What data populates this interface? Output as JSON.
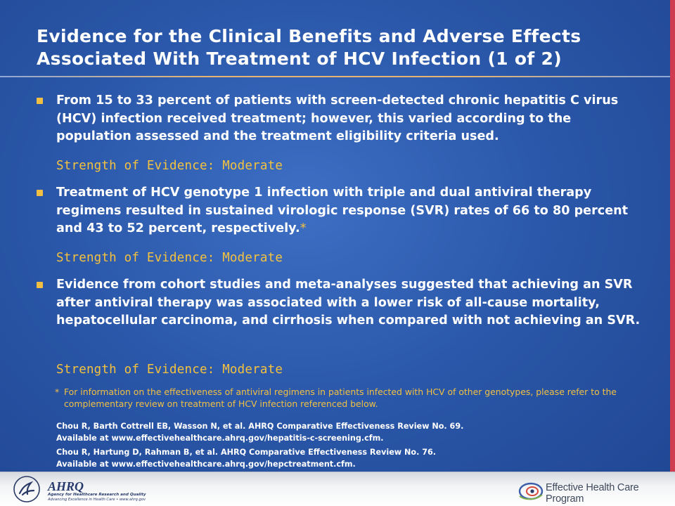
{
  "slide": {
    "title": "Evidence for the Clinical Benefits and Adverse Effects Associated With Treatment of HCV Infection (1 of 2)",
    "bullets": [
      {
        "text": "From 15 to 33 percent of patients with screen-detected chronic hepatitis C virus (HCV) infection received treatment; however, this varied according to the population assessed and the treatment eligibility criteria used.",
        "star": "",
        "strength": "Strength of Evidence: Moderate"
      },
      {
        "text": "Treatment of HCV genotype 1 infection with triple and dual antiviral therapy regimens resulted in sustained virologic response (SVR) rates of 66 to 80 percent and 43 to 52 percent, respectively.",
        "star": "*",
        "strength": "Strength of Evidence: Moderate"
      },
      {
        "text": "Evidence from cohort studies and meta-analyses suggested that achieving an SVR after antiviral therapy was associated with a lower risk of all-cause mortality, hepatocellular carcinoma, and cirrhosis when compared with not achieving an SVR.",
        "star": "",
        "strength": "Strength of Evidence: Moderate"
      }
    ],
    "footnote": {
      "mark": "*",
      "text": "For information on the effectiveness of antiviral regimens in patients infected with HCV of other genotypes, please refer to the complementary review on treatment of HCV infection referenced below."
    },
    "references": [
      {
        "line1": "Chou R, Barth Cottrell EB, Wasson N, et al. AHRQ Comparative Effectiveness Review No. 69.",
        "line2": "Available at www.effectivehealthcare.ahrq.gov/hepatitis-c-screening.cfm."
      },
      {
        "line1": "Chou R, Hartung D, Rahman B, et al. AHRQ Comparative Effectiveness Review No. 76.",
        "line2": "Available at www.effectivehealthcare.ahrq.gov/hepctreatment.cfm."
      }
    ]
  },
  "footer": {
    "ahrq_logo_text": "AHRQ",
    "ahrq_tagline_1": "Agency for Healthcare Research and Quality",
    "ahrq_tagline_2": "Advancing Excellence in Health Care • www.ahrq.gov",
    "ehc_program_text": "Effective Health Care Program"
  },
  "colors": {
    "background": "#2b58aa",
    "accent": "#f1c043",
    "right_bar": "#cf3b4f",
    "text": "#ffffff"
  }
}
